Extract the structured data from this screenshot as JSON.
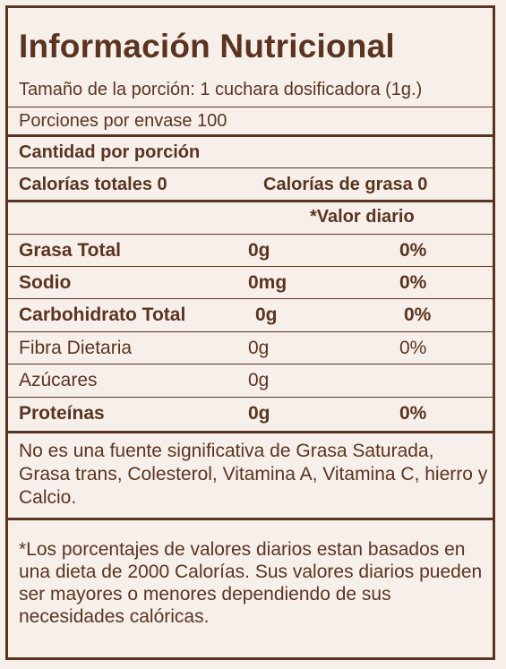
{
  "title": "Información Nutricional",
  "serving_size": "Tamaño de la porción: 1 cuchara dosificadora (1g.)",
  "servings_per_container": "Porciones por envase 100",
  "amount_per_serving": "Cantidad  por porción",
  "calories_total": "Calorías totales 0",
  "calories_fat": "Calorías de grasa 0",
  "daily_value_header": "*Valor diario",
  "nutrients": [
    {
      "name": "Grasa Total",
      "amount": "0g",
      "percent": "0%"
    },
    {
      "name": "Sodio",
      "amount": "0mg",
      "percent": "0%"
    },
    {
      "name": "Carbohidrato Total",
      "amount": "0g",
      "percent": "0%"
    },
    {
      "name": "Fibra Dietaria",
      "amount": "0g",
      "percent": "0%"
    },
    {
      "name": "Azúcares",
      "amount": "0g",
      "percent": ""
    },
    {
      "name": "Proteínas",
      "amount": "0g",
      "percent": "0%"
    }
  ],
  "note_not_significant": "No es una fuente significativa de Grasa Saturada, Grasa trans, Colesterol, Vitamina A, Vitamina C, hierro y Calcio.",
  "footnote": "*Los porcentajes de valores diarios estan basados en una dieta de 2000 Calorías. Sus valores diarios pueden ser mayores o menores dependiendo de sus necesidades calóricas."
}
